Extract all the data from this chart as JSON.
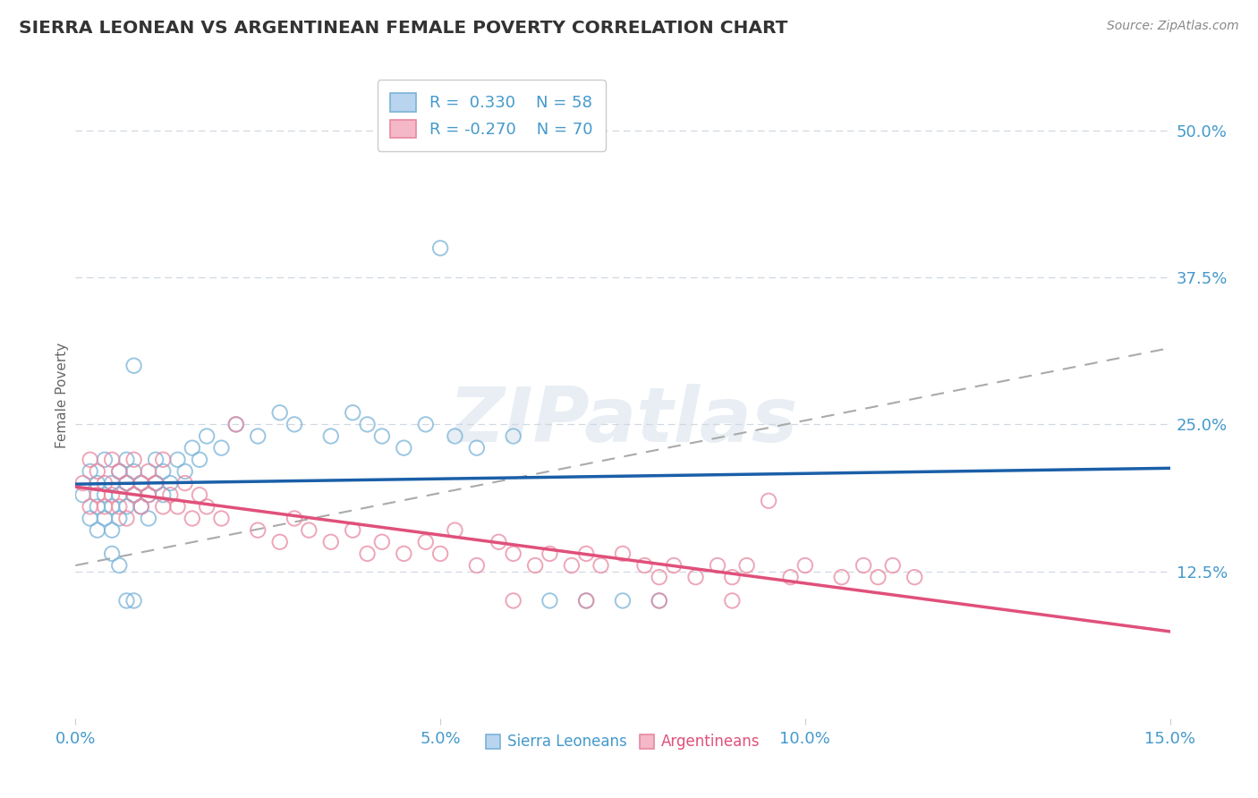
{
  "title": "SIERRA LEONEAN VS ARGENTINEAN FEMALE POVERTY CORRELATION CHART",
  "source": "Source: ZipAtlas.com",
  "ylabel": "Female Poverty",
  "xlim": [
    0.0,
    0.15
  ],
  "ylim": [
    0.0,
    0.55
  ],
  "xticks": [
    0.0,
    0.05,
    0.1,
    0.15
  ],
  "xtick_labels": [
    "0.0%",
    "5.0%",
    "10.0%",
    "15.0%"
  ],
  "ytick_labels_right": [
    "50.0%",
    "37.5%",
    "25.0%",
    "12.5%"
  ],
  "yticks_right": [
    0.5,
    0.375,
    0.25,
    0.125
  ],
  "series_labels": [
    "Sierra Leoneans",
    "Argentineans"
  ],
  "blue_edge_color": "#7ab3d8",
  "pink_edge_color": "#e888a0",
  "blue_line_color": "#1a5fa8",
  "pink_line_color": "#e0507a",
  "gray_dash_color": "#aaaaaa",
  "grid_color": "#d0d8e0",
  "background_color": "#ffffff",
  "title_color": "#333333",
  "axis_label_color": "#4499cc",
  "source_color": "#888888",
  "watermark_color": "#e8eef4",
  "legend_text_color": "#4499cc",
  "blue_legend_face": "#b8d4ee",
  "blue_legend_edge": "#7ab3d8",
  "pink_legend_face": "#f4b8c8",
  "pink_legend_edge": "#e888a0",
  "blue_scatter": [
    [
      0.001,
      0.19
    ],
    [
      0.002,
      0.17
    ],
    [
      0.002,
      0.21
    ],
    [
      0.003,
      0.18
    ],
    [
      0.003,
      0.16
    ],
    [
      0.003,
      0.2
    ],
    [
      0.004,
      0.19
    ],
    [
      0.004,
      0.17
    ],
    [
      0.004,
      0.22
    ],
    [
      0.005,
      0.18
    ],
    [
      0.005,
      0.2
    ],
    [
      0.005,
      0.16
    ],
    [
      0.006,
      0.19
    ],
    [
      0.006,
      0.17
    ],
    [
      0.006,
      0.21
    ],
    [
      0.007,
      0.2
    ],
    [
      0.007,
      0.18
    ],
    [
      0.007,
      0.22
    ],
    [
      0.008,
      0.19
    ],
    [
      0.008,
      0.21
    ],
    [
      0.008,
      0.3
    ],
    [
      0.009,
      0.18
    ],
    [
      0.009,
      0.2
    ],
    [
      0.01,
      0.19
    ],
    [
      0.01,
      0.17
    ],
    [
      0.011,
      0.2
    ],
    [
      0.011,
      0.22
    ],
    [
      0.012,
      0.21
    ],
    [
      0.012,
      0.19
    ],
    [
      0.013,
      0.2
    ],
    [
      0.014,
      0.22
    ],
    [
      0.015,
      0.21
    ],
    [
      0.016,
      0.23
    ],
    [
      0.017,
      0.22
    ],
    [
      0.018,
      0.24
    ],
    [
      0.02,
      0.23
    ],
    [
      0.022,
      0.25
    ],
    [
      0.025,
      0.24
    ],
    [
      0.028,
      0.26
    ],
    [
      0.03,
      0.25
    ],
    [
      0.035,
      0.24
    ],
    [
      0.038,
      0.26
    ],
    [
      0.04,
      0.25
    ],
    [
      0.042,
      0.24
    ],
    [
      0.045,
      0.23
    ],
    [
      0.048,
      0.25
    ],
    [
      0.05,
      0.4
    ],
    [
      0.052,
      0.24
    ],
    [
      0.055,
      0.23
    ],
    [
      0.06,
      0.24
    ],
    [
      0.065,
      0.1
    ],
    [
      0.07,
      0.1
    ],
    [
      0.075,
      0.1
    ],
    [
      0.08,
      0.1
    ],
    [
      0.005,
      0.14
    ],
    [
      0.006,
      0.13
    ],
    [
      0.007,
      0.1
    ],
    [
      0.008,
      0.1
    ]
  ],
  "pink_scatter": [
    [
      0.001,
      0.2
    ],
    [
      0.002,
      0.18
    ],
    [
      0.002,
      0.22
    ],
    [
      0.003,
      0.19
    ],
    [
      0.003,
      0.21
    ],
    [
      0.004,
      0.18
    ],
    [
      0.004,
      0.2
    ],
    [
      0.005,
      0.22
    ],
    [
      0.005,
      0.19
    ],
    [
      0.006,
      0.18
    ],
    [
      0.006,
      0.21
    ],
    [
      0.007,
      0.2
    ],
    [
      0.007,
      0.17
    ],
    [
      0.008,
      0.19
    ],
    [
      0.008,
      0.22
    ],
    [
      0.009,
      0.2
    ],
    [
      0.009,
      0.18
    ],
    [
      0.01,
      0.21
    ],
    [
      0.01,
      0.19
    ],
    [
      0.011,
      0.2
    ],
    [
      0.012,
      0.18
    ],
    [
      0.012,
      0.22
    ],
    [
      0.013,
      0.19
    ],
    [
      0.014,
      0.18
    ],
    [
      0.015,
      0.2
    ],
    [
      0.016,
      0.17
    ],
    [
      0.017,
      0.19
    ],
    [
      0.018,
      0.18
    ],
    [
      0.02,
      0.17
    ],
    [
      0.022,
      0.25
    ],
    [
      0.025,
      0.16
    ],
    [
      0.028,
      0.15
    ],
    [
      0.03,
      0.17
    ],
    [
      0.032,
      0.16
    ],
    [
      0.035,
      0.15
    ],
    [
      0.038,
      0.16
    ],
    [
      0.04,
      0.14
    ],
    [
      0.042,
      0.15
    ],
    [
      0.045,
      0.14
    ],
    [
      0.048,
      0.15
    ],
    [
      0.05,
      0.14
    ],
    [
      0.052,
      0.16
    ],
    [
      0.055,
      0.13
    ],
    [
      0.058,
      0.15
    ],
    [
      0.06,
      0.14
    ],
    [
      0.063,
      0.13
    ],
    [
      0.065,
      0.14
    ],
    [
      0.068,
      0.13
    ],
    [
      0.07,
      0.14
    ],
    [
      0.072,
      0.13
    ],
    [
      0.075,
      0.14
    ],
    [
      0.078,
      0.13
    ],
    [
      0.08,
      0.12
    ],
    [
      0.082,
      0.13
    ],
    [
      0.085,
      0.12
    ],
    [
      0.088,
      0.13
    ],
    [
      0.09,
      0.12
    ],
    [
      0.092,
      0.13
    ],
    [
      0.095,
      0.185
    ],
    [
      0.098,
      0.12
    ],
    [
      0.1,
      0.13
    ],
    [
      0.105,
      0.12
    ],
    [
      0.108,
      0.13
    ],
    [
      0.11,
      0.12
    ],
    [
      0.112,
      0.13
    ],
    [
      0.115,
      0.12
    ],
    [
      0.06,
      0.1
    ],
    [
      0.07,
      0.1
    ],
    [
      0.08,
      0.1
    ],
    [
      0.09,
      0.1
    ]
  ]
}
